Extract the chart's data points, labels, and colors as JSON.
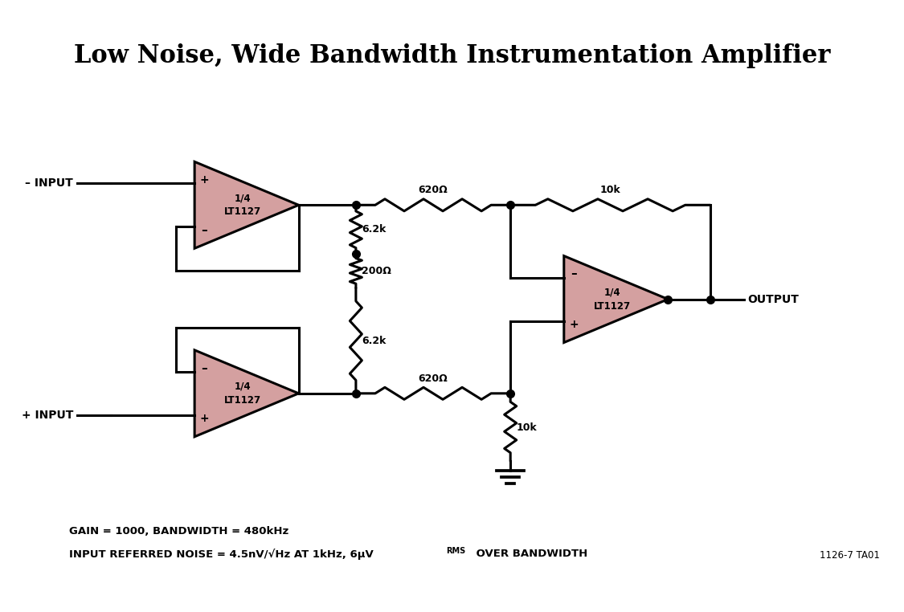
{
  "title": "Low Noise, Wide Bandwidth Instrumentation Amplifier",
  "title_fontsize": 22,
  "bg_color": "#FFFFFF",
  "line_color": "#000000",
  "opamp_fill": "#D4A0A0",
  "opamp_edge": "#000000",
  "line_width": 2.2,
  "dot_size": 7,
  "note1": "GAIN = 1000, BANDWIDTH = 480kHz",
  "note2": "INPUT REFERRED NOISE = 4.5nV/√Hz AT 1kHz, 6μV",
  "note2_sub": "RMS",
  "note2_end": " OVER BANDWIDTH",
  "ref": "1126-7 TA01",
  "labels": {
    "minus_input": "– INPUT",
    "plus_input": "+ INPUT",
    "output": "OUTPUT",
    "r1": "620Ω",
    "r2": "10k",
    "r3": "6.2k",
    "r4": "200Ω",
    "r5": "6.2k",
    "r6": "620Ω",
    "r7": "10k",
    "lt1": "1/4\nLT1127",
    "lt2": "1/4\nLT1127",
    "lt3": "1/4\nLT1127"
  }
}
